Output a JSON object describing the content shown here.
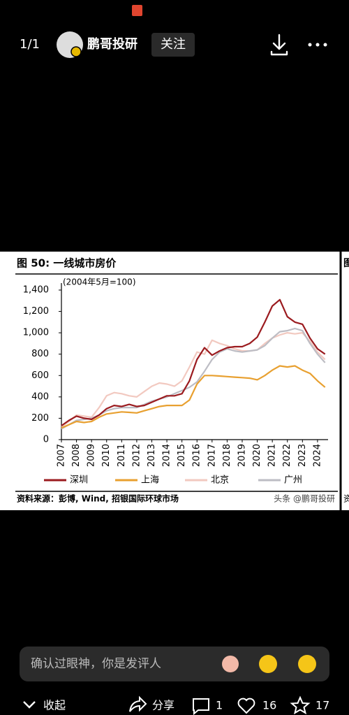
{
  "header": {
    "page": "1/1",
    "author": "鹏哥投研",
    "follow": "关注"
  },
  "adjacent_image_text": [
    "图",
    "资"
  ],
  "chart_data": {
    "type": "line",
    "title": "图 50: 一线城市房价",
    "subtitle": "(2004年5月=100)",
    "source": "资料来源：彭博, Wind, 招银国际环球市场",
    "watermark": "头条 @鹏哥投研",
    "x": [
      2007,
      2007.5,
      2008,
      2008.5,
      2009,
      2009.5,
      2010,
      2010.5,
      2011,
      2011.5,
      2012,
      2012.5,
      2013,
      2013.5,
      2014,
      2014.5,
      2015,
      2015.5,
      2016,
      2016.5,
      2017,
      2017.5,
      2018,
      2018.5,
      2019,
      2019.5,
      2020,
      2020.5,
      2021,
      2021.5,
      2022,
      2022.5,
      2023,
      2023.5,
      2024,
      2024.5
    ],
    "series": [
      {
        "name": "深圳",
        "color": "#9b1b1f",
        "values": [
          130,
          180,
          220,
          200,
          190,
          230,
          290,
          320,
          310,
          330,
          310,
          320,
          350,
          380,
          410,
          410,
          430,
          550,
          750,
          860,
          790,
          830,
          860,
          870,
          870,
          900,
          960,
          1100,
          1250,
          1310,
          1150,
          1100,
          1080,
          950,
          850,
          800
        ]
      },
      {
        "name": "上海",
        "color": "#e8a030",
        "values": [
          110,
          140,
          170,
          160,
          170,
          210,
          240,
          250,
          260,
          255,
          250,
          270,
          290,
          310,
          320,
          320,
          320,
          370,
          520,
          600,
          600,
          595,
          590,
          585,
          580,
          575,
          560,
          600,
          650,
          690,
          680,
          690,
          650,
          620,
          550,
          490
        ]
      },
      {
        "name": "北京",
        "color": "#f2c9c0",
        "values": [
          120,
          170,
          230,
          220,
          210,
          300,
          410,
          440,
          430,
          410,
          400,
          450,
          500,
          530,
          520,
          500,
          550,
          680,
          820,
          800,
          930,
          900,
          880,
          850,
          830,
          830,
          840,
          900,
          950,
          980,
          1000,
          990,
          1000,
          920,
          820,
          750
        ]
      },
      {
        "name": "广州",
        "color": "#bdbdc4",
        "values": [
          100,
          140,
          180,
          190,
          200,
          230,
          270,
          290,
          300,
          300,
          300,
          330,
          360,
          380,
          400,
          430,
          460,
          490,
          540,
          640,
          750,
          820,
          850,
          830,
          820,
          830,
          840,
          880,
          950,
          1010,
          1020,
          1040,
          1020,
          900,
          800,
          720
        ]
      }
    ],
    "xlim": [
      2007,
      2024.7
    ],
    "xticks": [
      2007,
      2008,
      2009,
      2010,
      2011,
      2012,
      2013,
      2014,
      2015,
      2016,
      2017,
      2018,
      2019,
      2020,
      2021,
      2022,
      2023,
      2024
    ],
    "ylim": [
      0,
      1400
    ],
    "yticks": [
      0,
      200,
      400,
      600,
      800,
      {
        "value": 1000,
        "label": "1,000"
      },
      {
        "value": 1200,
        "label": "1,200"
      },
      {
        "value": 1400,
        "label": "1,400"
      }
    ],
    "grid": false,
    "legend": "bottom"
  },
  "comment_placeholder": "确认过眼神，你是发评人",
  "footer": {
    "collapse": "收起",
    "share": "分享",
    "comments": 1,
    "likes": 16,
    "favorites": 17
  }
}
